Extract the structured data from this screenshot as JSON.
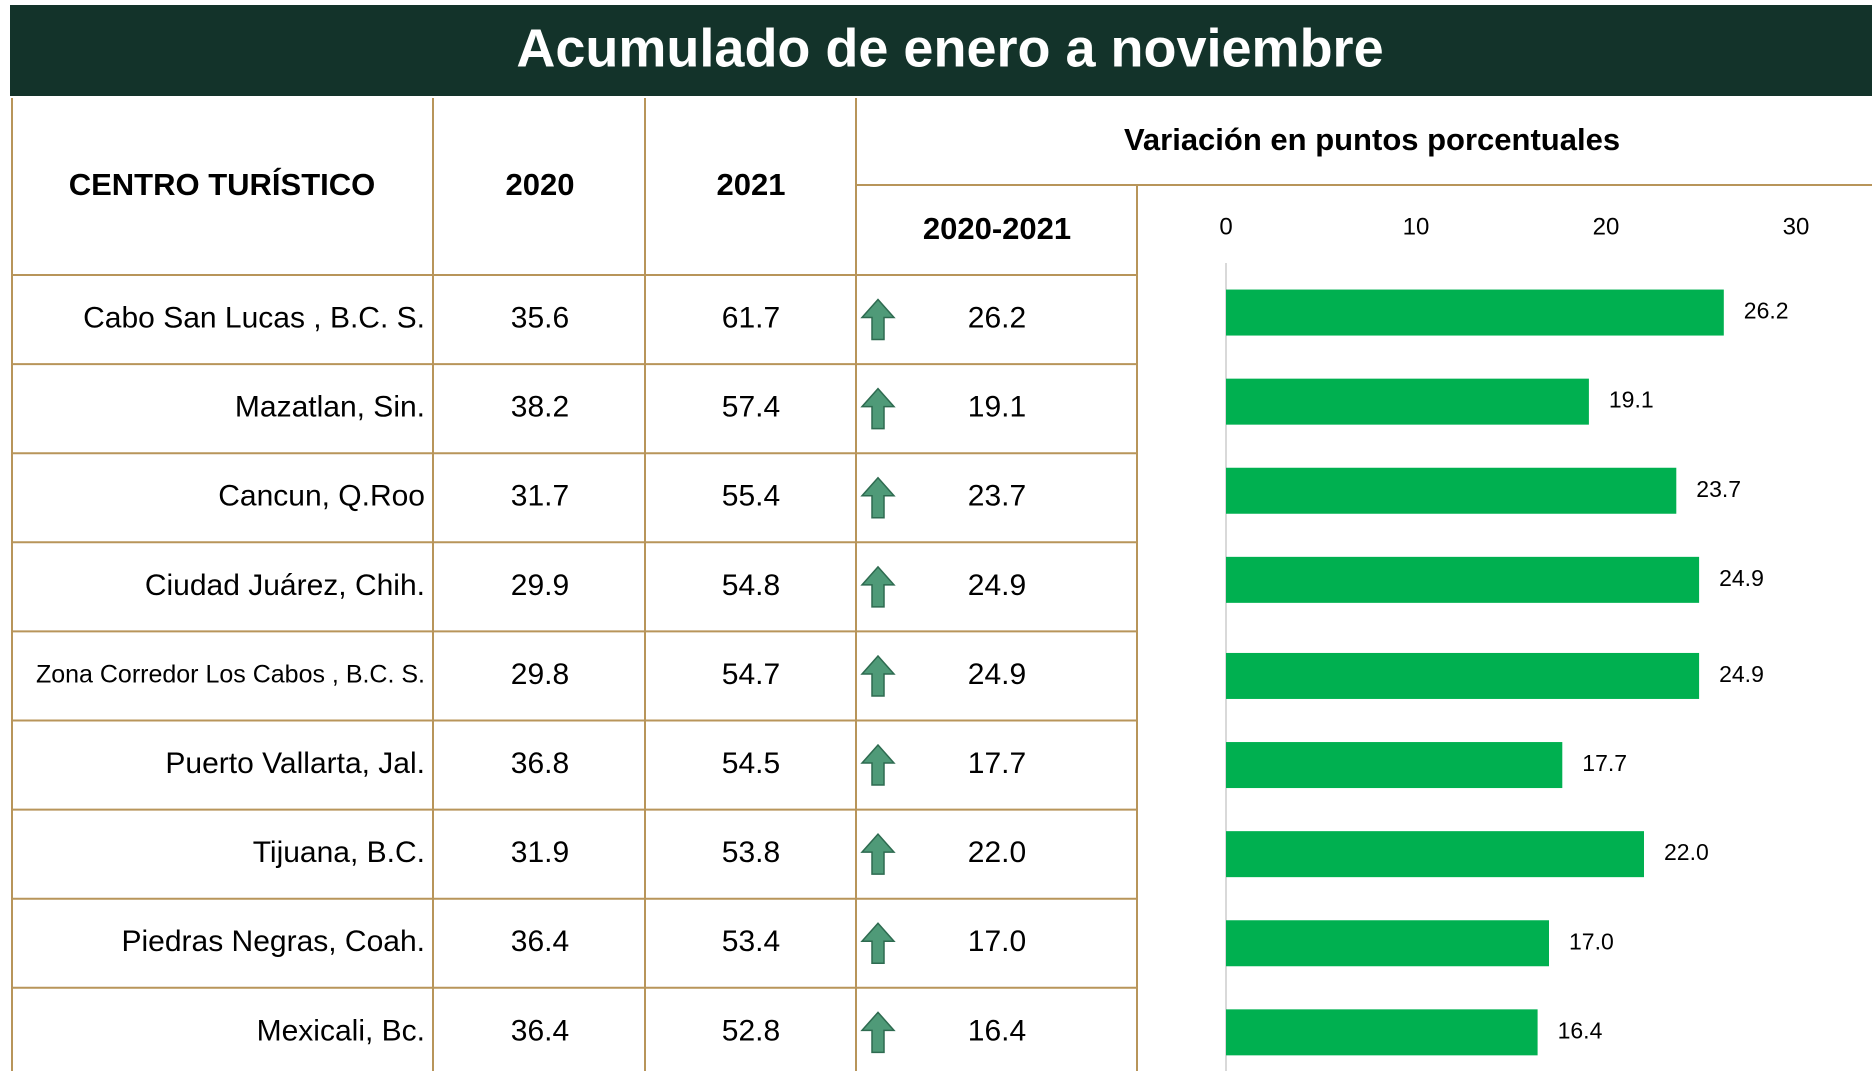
{
  "title": "Acumulado de enero a noviembre",
  "table": {
    "headers": [
      "CENTRO TURÍSTICO",
      "2020",
      "2021"
    ],
    "variation_header": "Variación en puntos porcentuales",
    "period": "2020-2021",
    "rows": [
      [
        "Cabo San Lucas , B.C. S.",
        "35.6",
        "61.7",
        "26.2"
      ],
      [
        "Mazatlan, Sin.",
        "38.2",
        "57.4",
        "19.1"
      ],
      [
        "Cancun, Q.Roo",
        "31.7",
        "55.4",
        "23.7"
      ],
      [
        "Ciudad Juárez, Chih.",
        "29.9",
        "54.8",
        "24.9"
      ],
      [
        "Zona Corredor Los Cabos , B.C. S.",
        "29.8",
        "54.7",
        "24.9"
      ],
      [
        "Puerto Vallarta, Jal.",
        "36.8",
        "54.5",
        "17.7"
      ],
      [
        "Tijuana, B.C.",
        "31.9",
        "53.8",
        "22.0"
      ],
      [
        "Piedras Negras, Coah.",
        "36.4",
        "53.4",
        "17.0"
      ],
      [
        "Mexicali, Bc.",
        "36.4",
        "52.8",
        "16.4"
      ]
    ]
  },
  "chart_data": {
    "type": "bar",
    "orientation": "horizontal",
    "values": [
      26.2,
      19.1,
      23.7,
      24.9,
      24.9,
      17.7,
      22.0,
      17.0,
      16.4
    ],
    "value_labels": [
      "26.2",
      "19.1",
      "23.7",
      "24.9",
      "24.9",
      "17.7",
      "22.0",
      "17.0",
      "16.4"
    ],
    "color": "#00b050",
    "xlim": [
      0,
      34
    ],
    "xticks": [
      0,
      10,
      20,
      30
    ]
  }
}
